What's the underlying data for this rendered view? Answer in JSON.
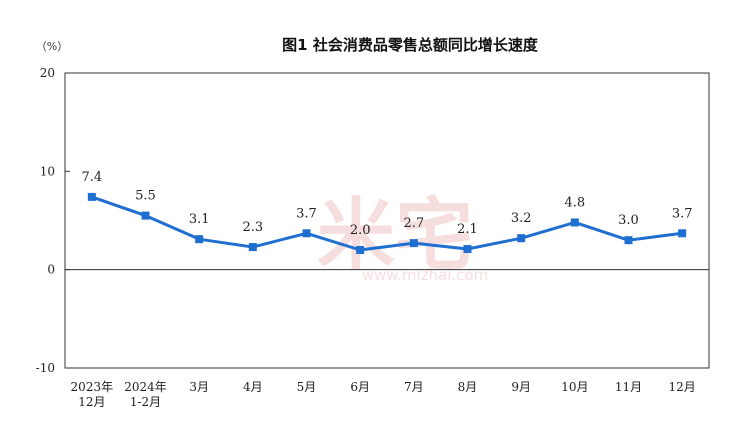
{
  "chart_data": {
    "type": "line",
    "title": "图1  社会消费品零售总额同比增长速度",
    "unit_label": "（%）",
    "ylim": [
      -10,
      20
    ],
    "yticks": [
      "-10",
      "0",
      "10",
      "20"
    ],
    "categories": [
      [
        "2023年",
        "12月"
      ],
      [
        "2024年",
        "1-2月"
      ],
      [
        "3月"
      ],
      [
        "4月"
      ],
      [
        "5月"
      ],
      [
        "6月"
      ],
      [
        "7月"
      ],
      [
        "8月"
      ],
      [
        "9月"
      ],
      [
        "10月"
      ],
      [
        "11月"
      ],
      [
        "12月"
      ]
    ],
    "series": [
      {
        "values": [
          7.4,
          5.5,
          3.1,
          2.3,
          3.7,
          2.0,
          2.7,
          2.1,
          3.2,
          4.8,
          3.0,
          3.7
        ],
        "labels": [
          "7.4",
          "5.5",
          "3.1",
          "2.3",
          "3.7",
          "2.0",
          "2.7",
          "2.1",
          "3.2",
          "4.8",
          "3.0",
          "3.7"
        ],
        "color": "#1f6fd1"
      }
    ],
    "grid": false
  },
  "watermark": {
    "logo": "米宅",
    "url": "www.mizhai.com",
    "color": "#e7a3a3"
  }
}
